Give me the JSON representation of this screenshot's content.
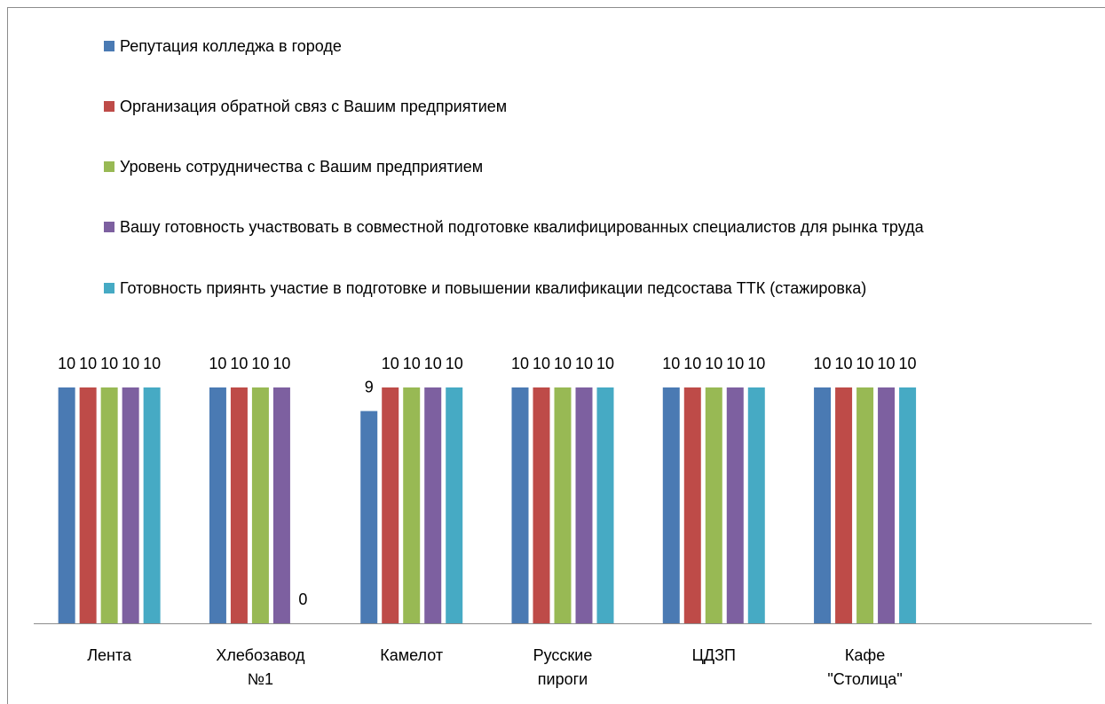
{
  "chart_data": {
    "type": "bar",
    "categories": [
      "Лента",
      "Хлебозавод №1",
      "Камелот",
      "Русские пироги",
      "ЦДЗП",
      "Кафе \"Столица\"",
      null
    ],
    "series": [
      {
        "name": "Репутация колледжа в городе",
        "color": "#4a7ab3",
        "values": [
          10,
          10,
          9,
          10,
          10,
          10,
          null
        ]
      },
      {
        "name": "Организация обратной связ с Вашим предприятием",
        "color": "#be4b48",
        "values": [
          10,
          10,
          10,
          10,
          10,
          10,
          null
        ]
      },
      {
        "name": "Уровень сотрудничества с Вашим предприятием",
        "color": "#98b954",
        "values": [
          10,
          10,
          10,
          10,
          10,
          10,
          null
        ]
      },
      {
        "name": "Вашу готовность участвовать в совместной подготовке квалифицированных специалистов для рынка труда",
        "color": "#7d60a0",
        "values": [
          10,
          10,
          10,
          10,
          10,
          10,
          null
        ]
      },
      {
        "name": "Готовность приянть участие в подготовке и повышении квалификации педсостава ТТК (стажировка)",
        "color": "#46aac4",
        "values": [
          10,
          0,
          10,
          10,
          10,
          10,
          null
        ]
      }
    ],
    "ylim": [
      0,
      12
    ],
    "data_labels": true,
    "legend": "top"
  }
}
